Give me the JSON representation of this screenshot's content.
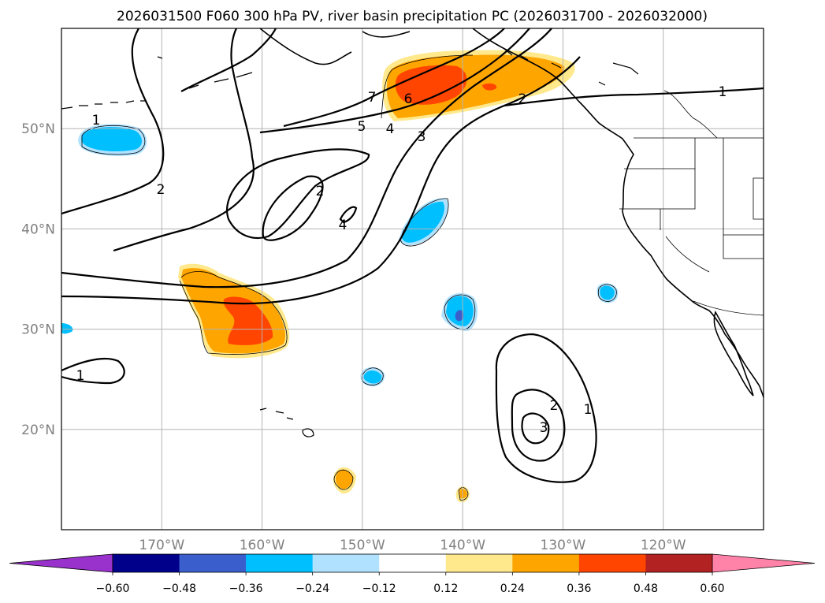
{
  "chart_data": {
    "type": "map",
    "title": "2026031500 F060 300 hPa PV, river basin precipitation PC (2026031700 - 2026032000)",
    "projection": "PlateCarree",
    "extent": {
      "lon_min": -180,
      "lon_max": -110,
      "lat_min": 10,
      "lat_max": 60
    },
    "gridlines": true,
    "x_ticks": [
      {
        "lon": -170,
        "label": "170°W"
      },
      {
        "lon": -160,
        "label": "160°W"
      },
      {
        "lon": -150,
        "label": "150°W"
      },
      {
        "lon": -140,
        "label": "140°W"
      },
      {
        "lon": -130,
        "label": "130°W"
      },
      {
        "lon": -120,
        "label": "120°W"
      }
    ],
    "y_ticks": [
      {
        "lat": 20,
        "label": "20°N"
      },
      {
        "lat": 30,
        "label": "30°N"
      },
      {
        "lat": 40,
        "label": "40°N"
      },
      {
        "lat": 50,
        "label": "50°N"
      }
    ],
    "colorbar": {
      "orientation": "horizontal",
      "extend": "both",
      "ticks": [
        "−0.60",
        "−0.48",
        "−0.36",
        "−0.24",
        "−0.12",
        "0.12",
        "0.24",
        "0.36",
        "0.48",
        "0.60"
      ],
      "under_color": "#9932cc",
      "over_color": "#ff82a9",
      "colors": [
        "#00008b",
        "#3a5fcd",
        "#00bfff",
        "#b0e2ff",
        "#ffffff",
        "#ffe98c",
        "#ffa500",
        "#ff4500",
        "#b22222"
      ]
    },
    "pv_contour_labels": [
      "1",
      "2",
      "2",
      "4",
      "7",
      "6",
      "5",
      "4",
      "3",
      "2",
      "1",
      "1",
      "2",
      "1",
      "3"
    ],
    "pv_levels": [
      1,
      2,
      3,
      4,
      5,
      6,
      7
    ]
  }
}
